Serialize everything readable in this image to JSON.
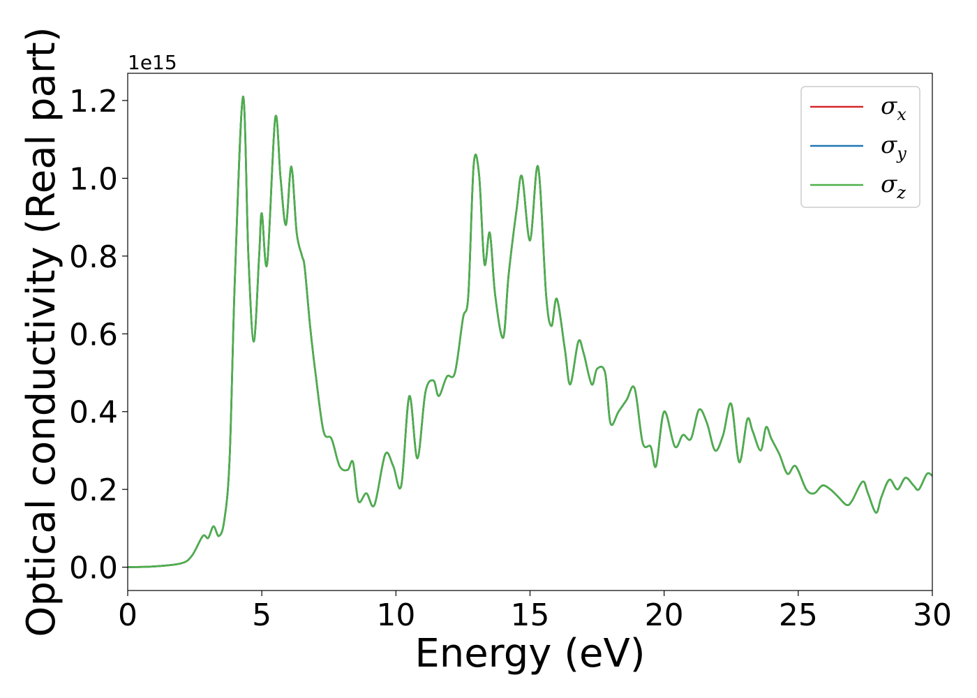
{
  "chart_data": {
    "type": "line",
    "title": "",
    "xlabel": "Energy (eV)",
    "ylabel": "Optical conductivity (Real part)",
    "y_offset_label": "1e15",
    "xlim": [
      0,
      30
    ],
    "ylim": [
      -0.06,
      1.27
    ],
    "x_ticks": [
      0,
      5,
      10,
      15,
      20,
      25,
      30
    ],
    "x_tick_labels": [
      "0",
      "5",
      "10",
      "15",
      "20",
      "25",
      "30"
    ],
    "y_ticks": [
      0.0,
      0.2,
      0.4,
      0.6,
      0.8,
      1.0,
      1.2
    ],
    "y_tick_labels": [
      "0.0",
      "0.2",
      "0.4",
      "0.6",
      "0.8",
      "1.0",
      "1.2"
    ],
    "grid": false,
    "legend_placement": "top-right",
    "x": [
      0,
      1,
      2,
      2.4,
      2.8,
      3.0,
      3.2,
      3.4,
      3.6,
      3.8,
      4.0,
      4.3,
      4.5,
      4.7,
      4.9,
      5.0,
      5.2,
      5.5,
      5.7,
      5.9,
      6.1,
      6.3,
      6.5,
      6.6,
      6.8,
      7.0,
      7.3,
      7.6,
      7.9,
      8.2,
      8.4,
      8.6,
      8.9,
      9.2,
      9.6,
      9.9,
      10.2,
      10.5,
      10.8,
      11.1,
      11.4,
      11.6,
      11.9,
      12.2,
      12.5,
      12.7,
      12.9,
      13.1,
      13.3,
      13.5,
      13.7,
      14.0,
      14.2,
      14.5,
      14.7,
      15.0,
      15.3,
      15.6,
      15.8,
      16.0,
      16.3,
      16.5,
      16.8,
      17.0,
      17.3,
      17.5,
      17.8,
      18.0,
      18.3,
      18.6,
      18.9,
      19.2,
      19.5,
      19.7,
      20.0,
      20.4,
      20.7,
      21.0,
      21.3,
      21.6,
      21.9,
      22.2,
      22.5,
      22.8,
      23.1,
      23.3,
      23.6,
      23.8,
      24.0,
      24.3,
      24.6,
      24.9,
      25.3,
      25.6,
      25.9,
      26.2,
      26.5,
      26.8,
      27.0,
      27.4,
      27.6,
      27.9,
      28.1,
      28.4,
      28.7,
      29.0,
      29.3,
      29.5,
      29.8,
      30.0
    ],
    "series": [
      {
        "name": "σx",
        "color": "#d62728",
        "values": [
          0.0,
          0.002,
          0.01,
          0.03,
          0.08,
          0.075,
          0.105,
          0.08,
          0.12,
          0.28,
          0.75,
          1.21,
          0.8,
          0.58,
          0.8,
          0.91,
          0.78,
          1.155,
          1.0,
          0.88,
          1.03,
          0.86,
          0.8,
          0.77,
          0.62,
          0.5,
          0.35,
          0.33,
          0.26,
          0.25,
          0.27,
          0.17,
          0.19,
          0.16,
          0.29,
          0.26,
          0.21,
          0.44,
          0.28,
          0.45,
          0.48,
          0.44,
          0.49,
          0.5,
          0.64,
          0.7,
          1.035,
          1.01,
          0.78,
          0.86,
          0.7,
          0.59,
          0.75,
          0.92,
          1.005,
          0.84,
          1.03,
          0.7,
          0.62,
          0.69,
          0.56,
          0.47,
          0.58,
          0.55,
          0.47,
          0.51,
          0.5,
          0.37,
          0.4,
          0.43,
          0.46,
          0.32,
          0.31,
          0.26,
          0.4,
          0.31,
          0.34,
          0.33,
          0.405,
          0.37,
          0.3,
          0.34,
          0.42,
          0.27,
          0.38,
          0.35,
          0.3,
          0.36,
          0.33,
          0.29,
          0.24,
          0.26,
          0.2,
          0.19,
          0.21,
          0.2,
          0.18,
          0.16,
          0.17,
          0.22,
          0.19,
          0.14,
          0.18,
          0.225,
          0.2,
          0.23,
          0.21,
          0.2,
          0.24,
          0.235
        ]
      },
      {
        "name": "σy",
        "color": "#1f77b4",
        "values": [
          0.0,
          0.002,
          0.01,
          0.03,
          0.08,
          0.075,
          0.105,
          0.08,
          0.12,
          0.28,
          0.75,
          1.21,
          0.8,
          0.58,
          0.8,
          0.91,
          0.78,
          1.155,
          1.0,
          0.88,
          1.03,
          0.86,
          0.8,
          0.77,
          0.62,
          0.5,
          0.35,
          0.33,
          0.26,
          0.25,
          0.27,
          0.17,
          0.19,
          0.16,
          0.29,
          0.26,
          0.21,
          0.44,
          0.28,
          0.45,
          0.48,
          0.44,
          0.49,
          0.5,
          0.64,
          0.7,
          1.035,
          1.01,
          0.78,
          0.86,
          0.7,
          0.59,
          0.75,
          0.92,
          1.005,
          0.84,
          1.03,
          0.7,
          0.62,
          0.69,
          0.56,
          0.47,
          0.58,
          0.55,
          0.47,
          0.51,
          0.5,
          0.37,
          0.4,
          0.43,
          0.46,
          0.32,
          0.31,
          0.26,
          0.4,
          0.31,
          0.34,
          0.33,
          0.405,
          0.37,
          0.3,
          0.34,
          0.42,
          0.27,
          0.38,
          0.35,
          0.3,
          0.36,
          0.33,
          0.29,
          0.24,
          0.26,
          0.2,
          0.19,
          0.21,
          0.2,
          0.18,
          0.16,
          0.17,
          0.22,
          0.19,
          0.14,
          0.18,
          0.225,
          0.2,
          0.23,
          0.21,
          0.2,
          0.24,
          0.235
        ]
      },
      {
        "name": "σz",
        "color": "#4daf4a",
        "values": [
          0.0,
          0.002,
          0.01,
          0.03,
          0.08,
          0.075,
          0.105,
          0.08,
          0.12,
          0.28,
          0.75,
          1.21,
          0.8,
          0.58,
          0.8,
          0.91,
          0.78,
          1.155,
          1.0,
          0.88,
          1.03,
          0.86,
          0.8,
          0.77,
          0.62,
          0.5,
          0.35,
          0.33,
          0.26,
          0.25,
          0.27,
          0.17,
          0.19,
          0.16,
          0.29,
          0.26,
          0.21,
          0.44,
          0.28,
          0.45,
          0.48,
          0.44,
          0.49,
          0.5,
          0.64,
          0.7,
          1.035,
          1.01,
          0.78,
          0.86,
          0.7,
          0.59,
          0.75,
          0.92,
          1.005,
          0.84,
          1.03,
          0.7,
          0.62,
          0.69,
          0.56,
          0.47,
          0.58,
          0.55,
          0.47,
          0.51,
          0.5,
          0.37,
          0.4,
          0.43,
          0.46,
          0.32,
          0.31,
          0.26,
          0.4,
          0.31,
          0.34,
          0.33,
          0.405,
          0.37,
          0.3,
          0.34,
          0.42,
          0.27,
          0.38,
          0.35,
          0.3,
          0.36,
          0.33,
          0.29,
          0.24,
          0.26,
          0.2,
          0.19,
          0.21,
          0.2,
          0.18,
          0.16,
          0.17,
          0.22,
          0.19,
          0.14,
          0.18,
          0.225,
          0.2,
          0.23,
          0.21,
          0.2,
          0.24,
          0.235
        ]
      }
    ],
    "legend": [
      {
        "symbol": "σ",
        "sub": "x",
        "color": "#d62728"
      },
      {
        "symbol": "σ",
        "sub": "y",
        "color": "#1f77b4"
      },
      {
        "symbol": "σ",
        "sub": "z",
        "color": "#4daf4a"
      }
    ]
  }
}
